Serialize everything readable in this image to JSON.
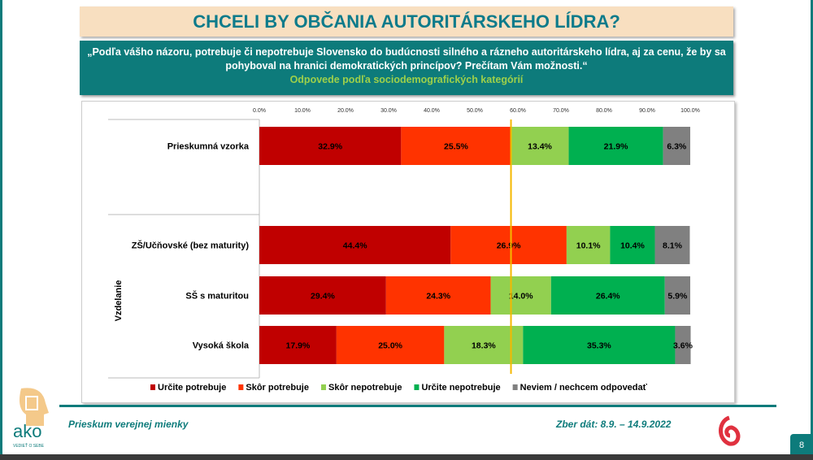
{
  "title": "CHCELI BY OBČANIA AUTORITÁRSKEHO LÍDRA?",
  "question": "„Podľa vášho názoru, potrebuje či nepotrebuje Slovensko do budúcnosti silného a rázneho autoritárskeho lídra, aj za cenu, že by sa pohyboval na hranici demokratických princípov? Prečítam Vám možnosti.“",
  "subtitle": "Odpovede podľa sociodemografických kategórií",
  "chart_data": {
    "type": "bar",
    "orientation": "horizontal-stacked-100",
    "categories": [
      "Prieskumná vzorka",
      "ZŠ/Učňovské (bez maturity)",
      "SŠ s maturitou",
      "Vysoká škola"
    ],
    "group_label": "Vzdelanie",
    "xlim": [
      0,
      100
    ],
    "ticks": [
      "0.0%",
      "10.0%",
      "20.0%",
      "30.0%",
      "40.0%",
      "50.0%",
      "60.0%",
      "70.0%",
      "80.0%",
      "90.0%",
      "100.0%"
    ],
    "legend_position": "bottom",
    "reference_line": 58.4,
    "reference_color": "#f5b800",
    "series": [
      {
        "name": "Určite potrebuje",
        "color": "#c00000",
        "values": [
          32.9,
          44.4,
          29.4,
          17.9
        ]
      },
      {
        "name": "Skôr potrebuje",
        "color": "#ff3300",
        "values": [
          25.5,
          26.9,
          24.3,
          25.0
        ]
      },
      {
        "name": "Skôr nepotrebuje",
        "color": "#92d050",
        "values": [
          13.4,
          10.1,
          14.0,
          18.3
        ]
      },
      {
        "name": "Určite nepotrebuje",
        "color": "#00b050",
        "values": [
          21.9,
          10.4,
          26.4,
          35.3
        ]
      },
      {
        "name": "Neviem / nechcem odpovedať",
        "color": "#808080",
        "values": [
          6.3,
          8.1,
          5.9,
          3.6
        ]
      }
    ]
  },
  "footer": {
    "left": "Prieskum verejnej mienky",
    "right": "Zber dát: 8.9. – 14.9.2022",
    "page": "8",
    "logo": "ako",
    "logo_tagline": "VEDIEŤ O SEBE"
  }
}
